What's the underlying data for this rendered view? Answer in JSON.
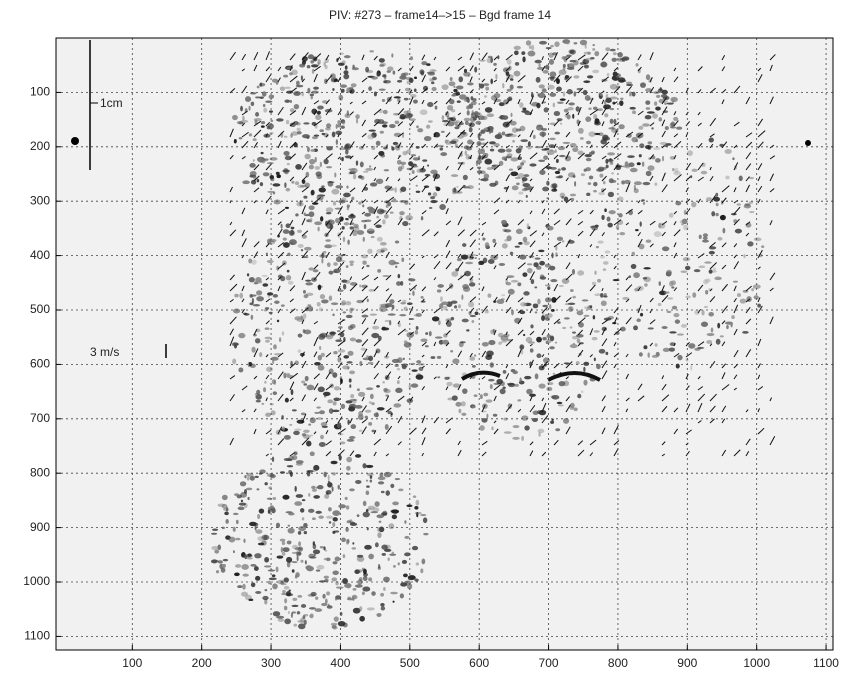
{
  "chart_data": {
    "type": "piv",
    "title": "PIV: #273 – frame14–>15 – Bgd frame 14",
    "xlim": [
      -10,
      1110
    ],
    "ylim": [
      0,
      1125
    ],
    "y_inverted": true,
    "xticks": [
      100,
      200,
      300,
      400,
      500,
      600,
      700,
      800,
      900,
      1000,
      1100
    ],
    "yticks": [
      100,
      200,
      300,
      400,
      500,
      600,
      700,
      800,
      900,
      1000,
      1100
    ],
    "grid": true,
    "scale_label": "1cm",
    "velocity_label": "3 m/s"
  }
}
